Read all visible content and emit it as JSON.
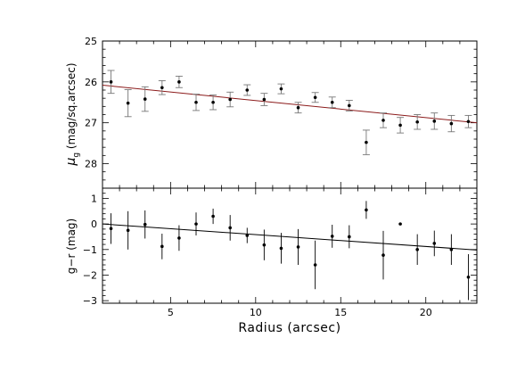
{
  "chart_data": [
    {
      "type": "scatter",
      "panel": "top",
      "ylabel_symbol": "μ",
      "ylabel_subscript": "g",
      "ylabel_rest": "(mag/sq.arcsec)",
      "xlim": [
        1,
        23
      ],
      "ylim": [
        28.6,
        25
      ],
      "yaxis_inverted": true,
      "yticks": [
        25,
        26,
        27,
        28
      ],
      "grid": false,
      "error_bar_color": "#777777",
      "point_color": "#000000",
      "fit_line": {
        "x": [
          1,
          23
        ],
        "y": [
          26.08,
          27.0
        ],
        "color": "#8b1a1a"
      },
      "x": [
        1.5,
        2.5,
        3.5,
        4.5,
        5.5,
        6.5,
        7.5,
        8.5,
        9.5,
        10.5,
        11.5,
        12.5,
        13.5,
        14.5,
        15.5,
        16.5,
        17.5,
        18.5,
        19.5,
        20.5,
        21.5,
        22.5
      ],
      "y": [
        26.0,
        26.52,
        26.42,
        26.14,
        26.0,
        26.5,
        26.5,
        26.43,
        26.2,
        26.43,
        26.17,
        26.63,
        26.38,
        26.5,
        26.58,
        27.48,
        26.94,
        27.06,
        26.98,
        26.96,
        27.02,
        26.97
      ],
      "yerr": [
        0.28,
        0.33,
        0.3,
        0.17,
        0.14,
        0.2,
        0.18,
        0.18,
        0.13,
        0.15,
        0.12,
        0.13,
        0.12,
        0.13,
        0.13,
        0.3,
        0.18,
        0.19,
        0.18,
        0.2,
        0.2,
        0.15
      ]
    },
    {
      "type": "scatter",
      "panel": "bottom",
      "xlabel": "Radius (arcsec)",
      "ylabel": "g−r (mag)",
      "xlim": [
        1,
        23
      ],
      "ylim": [
        -3.1,
        1.4
      ],
      "xticks": [
        5,
        10,
        15,
        20
      ],
      "yticks": [
        -3,
        -2,
        -1,
        0,
        1
      ],
      "ytick_labels": [
        "−3",
        "−2",
        "−1",
        "0",
        "1"
      ],
      "grid": false,
      "error_bar_color": "#000000",
      "point_color": "#000000",
      "fit_line": {
        "x": [
          1,
          23
        ],
        "y": [
          0.0,
          -1.02
        ],
        "color": "#000000"
      },
      "x": [
        1.5,
        2.5,
        3.5,
        4.5,
        5.5,
        6.5,
        7.5,
        8.5,
        9.5,
        10.5,
        11.5,
        12.5,
        13.5,
        14.5,
        15.5,
        16.5,
        17.5,
        18.5,
        19.5,
        20.5,
        21.5,
        22.5
      ],
      "y": [
        -0.18,
        -0.25,
        -0.02,
        -0.88,
        -0.55,
        0.0,
        0.3,
        -0.15,
        -0.45,
        -0.82,
        -0.95,
        -0.9,
        -1.6,
        -0.48,
        -0.5,
        0.55,
        -1.22,
        0.0,
        -1.0,
        -0.76,
        -1.0,
        -2.08
      ],
      "yerr": [
        0.6,
        0.75,
        0.55,
        0.5,
        0.5,
        0.45,
        0.3,
        0.5,
        0.3,
        0.6,
        0.6,
        0.7,
        0.95,
        0.45,
        0.45,
        0.35,
        0.95,
        0.0,
        0.6,
        0.5,
        0.6,
        0.9
      ]
    }
  ]
}
